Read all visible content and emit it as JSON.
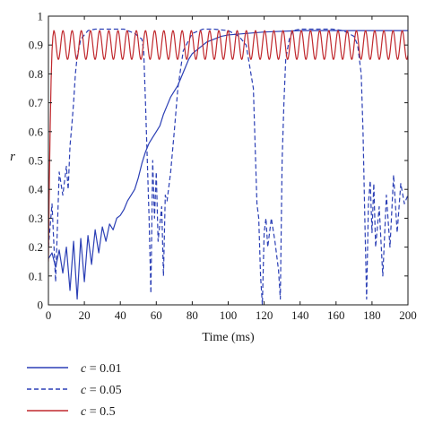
{
  "chart_data": {
    "type": "line",
    "xlabel": "Time (ms)",
    "ylabel": "r",
    "xlim": [
      0,
      200
    ],
    "ylim": [
      0,
      1
    ],
    "xticks": [
      0,
      20,
      40,
      60,
      80,
      100,
      120,
      140,
      160,
      180,
      200
    ],
    "yticks": [
      0,
      0.1,
      0.2,
      0.3,
      0.4,
      0.5,
      0.6,
      0.7,
      0.8,
      0.9,
      1
    ],
    "grid": false,
    "legend_position": "below",
    "series": [
      {
        "name": "c = 0.01",
        "legend_var": "c",
        "legend_value": "= 0.01",
        "color": "#2b3fb5",
        "style": "solid",
        "x": [
          0,
          2,
          4,
          6,
          8,
          10,
          12,
          14,
          16,
          18,
          20,
          22,
          24,
          26,
          28,
          30,
          32,
          34,
          36,
          38,
          40,
          42,
          44,
          46,
          48,
          50,
          52,
          54,
          56,
          58,
          60,
          62,
          64,
          66,
          68,
          70,
          72,
          74,
          76,
          78,
          80,
          84,
          88,
          92,
          96,
          100,
          110,
          120,
          140,
          160,
          180,
          200
        ],
        "y": [
          0.16,
          0.18,
          0.13,
          0.19,
          0.11,
          0.2,
          0.05,
          0.22,
          0.02,
          0.23,
          0.08,
          0.24,
          0.14,
          0.26,
          0.18,
          0.27,
          0.22,
          0.28,
          0.26,
          0.3,
          0.31,
          0.33,
          0.36,
          0.38,
          0.4,
          0.44,
          0.49,
          0.53,
          0.56,
          0.58,
          0.6,
          0.62,
          0.66,
          0.69,
          0.72,
          0.74,
          0.76,
          0.79,
          0.82,
          0.85,
          0.87,
          0.89,
          0.91,
          0.92,
          0.93,
          0.935,
          0.94,
          0.945,
          0.95,
          0.95,
          0.95,
          0.95
        ]
      },
      {
        "name": "c = 0.05",
        "legend_var": "c",
        "legend_value": "= 0.05",
        "color": "#2b3fb5",
        "style": "dashed",
        "x": [
          0,
          2,
          4,
          6,
          8,
          10,
          11,
          12,
          13,
          14,
          15,
          16,
          18,
          22,
          26,
          30,
          36,
          42,
          48,
          50,
          52,
          53,
          54,
          55,
          56,
          57,
          58,
          59,
          60,
          61,
          62,
          63,
          64,
          65,
          66,
          68,
          70,
          72,
          75,
          80,
          86,
          92,
          100,
          106,
          110,
          114,
          115,
          116,
          117,
          118,
          119,
          120,
          121,
          122,
          124,
          126,
          128,
          129,
          130,
          131,
          132,
          134,
          136,
          140,
          144,
          148,
          152,
          158,
          164,
          170,
          172,
          174,
          175,
          176,
          177,
          178,
          179,
          180,
          181,
          182,
          184,
          186,
          188,
          190,
          192,
          194,
          196,
          198,
          200
        ],
        "y": [
          0.2,
          0.35,
          0.08,
          0.46,
          0.38,
          0.48,
          0.4,
          0.55,
          0.62,
          0.7,
          0.8,
          0.86,
          0.92,
          0.95,
          0.955,
          0.955,
          0.955,
          0.955,
          0.94,
          0.93,
          0.92,
          0.88,
          0.7,
          0.5,
          0.3,
          0.04,
          0.5,
          0.3,
          0.46,
          0.22,
          0.28,
          0.34,
          0.1,
          0.38,
          0.36,
          0.46,
          0.6,
          0.75,
          0.88,
          0.94,
          0.955,
          0.955,
          0.95,
          0.93,
          0.9,
          0.75,
          0.55,
          0.35,
          0.3,
          0.1,
          0.0,
          0.25,
          0.3,
          0.2,
          0.3,
          0.22,
          0.12,
          0.02,
          0.5,
          0.7,
          0.85,
          0.92,
          0.95,
          0.955,
          0.955,
          0.955,
          0.955,
          0.955,
          0.95,
          0.93,
          0.9,
          0.8,
          0.6,
          0.3,
          0.02,
          0.35,
          0.43,
          0.25,
          0.42,
          0.2,
          0.34,
          0.1,
          0.38,
          0.2,
          0.45,
          0.25,
          0.42,
          0.35,
          0.38
        ]
      },
      {
        "name": "c = 0.5",
        "legend_var": "c",
        "legend_value": "= 0.5",
        "color": "#c0282d",
        "style": "solid",
        "x_start": 0,
        "x_end": 200,
        "initial_x": [
          0,
          0.5,
          1,
          1.5,
          2,
          2.5,
          3
        ],
        "initial_y": [
          0.15,
          0.42,
          0.62,
          0.78,
          0.88,
          0.93,
          0.95
        ],
        "oscillation_upper": 0.95,
        "oscillation_lower": 0.85,
        "oscillation_period": 5.1
      }
    ]
  }
}
